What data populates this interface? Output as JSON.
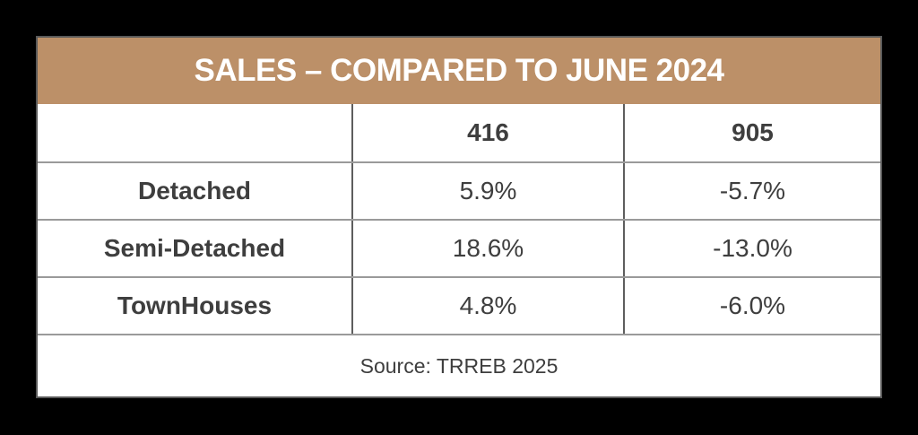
{
  "chart_data": {
    "type": "table",
    "title": "SALES – COMPARED TO JUNE 2024",
    "columns": [
      "",
      "416",
      "905"
    ],
    "rows": [
      [
        "Detached",
        "5.9%",
        "-5.7%"
      ],
      [
        "Semi-Detached",
        "18.6%",
        "-13.0%"
      ],
      [
        "TownHouses",
        "4.8%",
        "-6.0%"
      ]
    ],
    "series": [
      {
        "name": "416",
        "values": [
          5.9,
          18.6,
          4.8
        ]
      },
      {
        "name": "905",
        "values": [
          -5.7,
          -13.0,
          -6.0
        ]
      }
    ],
    "source": "Source: TRREB 2025"
  },
  "table": {
    "title": "SALES – COMPARED TO JUNE 2024",
    "columns": {
      "col1": "",
      "col2": "416",
      "col3": "905"
    },
    "rows": [
      {
        "label": "Detached",
        "values": [
          "5.9%",
          "-5.7%"
        ]
      },
      {
        "label": "Semi-Detached",
        "values": [
          "18.6%",
          "-13.0%"
        ]
      },
      {
        "label": "TownHouses",
        "values": [
          "4.8%",
          "-6.0%"
        ]
      }
    ],
    "source": "Source: TRREB 2025"
  },
  "colors": {
    "background": "#000000",
    "card_background": "#ffffff",
    "title_background": "#bc9068",
    "title_text": "#ffffff",
    "body_text": "#3e3e3e",
    "horizontal_border": "#9a9a9a",
    "vertical_border": "#5e5e5e"
  }
}
